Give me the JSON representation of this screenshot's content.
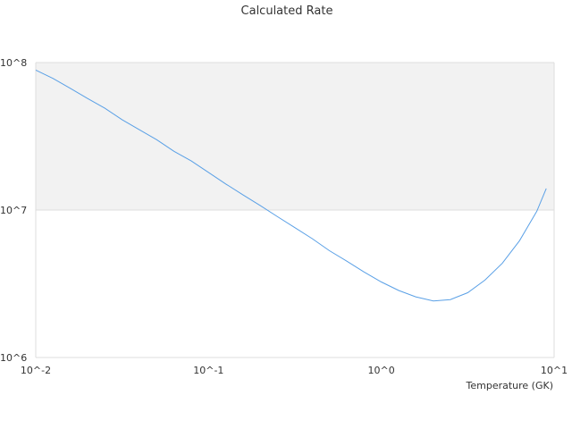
{
  "chart_data": {
    "type": "line",
    "title": "Calculated Rate",
    "xlabel": "Temperature (GK)",
    "ylabel": "",
    "x_scale": "log",
    "y_scale": "log",
    "xlim": [
      0.01,
      10
    ],
    "ylim": [
      1000000,
      100000000
    ],
    "x_tick_labels": [
      "10^-2",
      "10^-1",
      "10^0",
      "10^1"
    ],
    "y_tick_labels": [
      "10^6",
      "10^7",
      "10^8"
    ],
    "grid": true,
    "shaded_band": {
      "ymin": 10000000,
      "ymax": 100000000,
      "color": "#f2f2f2"
    },
    "legend": "none",
    "series": [
      {
        "color": "#5aa0e6",
        "x": [
          0.01,
          0.0126,
          0.0158,
          0.02,
          0.0251,
          0.0316,
          0.0398,
          0.0501,
          0.0631,
          0.0794,
          0.1,
          0.126,
          0.158,
          0.2,
          0.251,
          0.316,
          0.398,
          0.501,
          0.631,
          0.794,
          1.0,
          1.26,
          1.58,
          2.0,
          2.51,
          3.16,
          3.98,
          5.01,
          6.31,
          7.94,
          9.0
        ],
        "y": [
          89000000,
          78000000,
          67000000,
          57000000,
          49000000,
          41000000,
          35000000,
          30000000,
          25000000,
          21500000,
          18000000,
          15000000,
          12700000,
          10700000,
          9000000,
          7600000,
          6400000,
          5300000,
          4500000,
          3800000,
          3250000,
          2850000,
          2580000,
          2420000,
          2470000,
          2750000,
          3350000,
          4350000,
          6200000,
          9800000,
          14000000
        ]
      }
    ]
  }
}
